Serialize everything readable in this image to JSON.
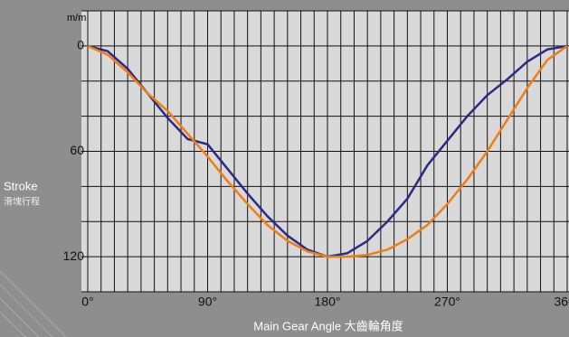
{
  "chart_data": {
    "type": "line",
    "unit": "m/m",
    "y_label": "Stroke",
    "y_label_sub": "滑塊行程",
    "x_label": "Main Gear Angle 大齒輪角度",
    "x": [
      0,
      15,
      30,
      45,
      60,
      75,
      90,
      105,
      120,
      135,
      150,
      165,
      180,
      195,
      210,
      225,
      240,
      255,
      270,
      285,
      300,
      315,
      330,
      345,
      360
    ],
    "series": [
      {
        "color": "#2b2a85",
        "values": [
          0,
          3,
          13,
          27,
          41,
          53,
          56,
          70,
          84,
          97,
          108,
          116,
          120,
          118,
          111,
          100,
          87,
          68,
          54,
          40,
          28,
          19,
          9,
          2,
          0
        ]
      },
      {
        "color": "#f07d14",
        "values": [
          0,
          5,
          15,
          27,
          37,
          50,
          63,
          77,
          90,
          102,
          111,
          117,
          120,
          120,
          119,
          116,
          110,
          102,
          90,
          76,
          60,
          42,
          24,
          8,
          0
        ]
      }
    ],
    "xlim": [
      0,
      360
    ],
    "xticks": [
      {
        "value": 0,
        "label": "0°"
      },
      {
        "value": 90,
        "label": "90°"
      },
      {
        "value": 180,
        "label": "180°"
      },
      {
        "value": 270,
        "label": "270°"
      },
      {
        "value": 360,
        "label": "360°"
      }
    ],
    "xgrid": [
      0,
      10,
      20,
      30,
      40,
      50,
      60,
      70,
      80,
      90,
      100,
      110,
      120,
      130,
      140,
      150,
      160,
      170,
      180,
      190,
      200,
      210,
      220,
      230,
      240,
      250,
      260,
      270,
      280,
      290,
      300,
      310,
      320,
      330,
      340,
      350,
      360
    ],
    "ylim": [
      -20,
      140
    ],
    "y_inverted": true,
    "yticks": [
      0,
      60,
      120
    ],
    "ygrid": [
      -20,
      0,
      20,
      40,
      60,
      80,
      100,
      120,
      140
    ]
  }
}
